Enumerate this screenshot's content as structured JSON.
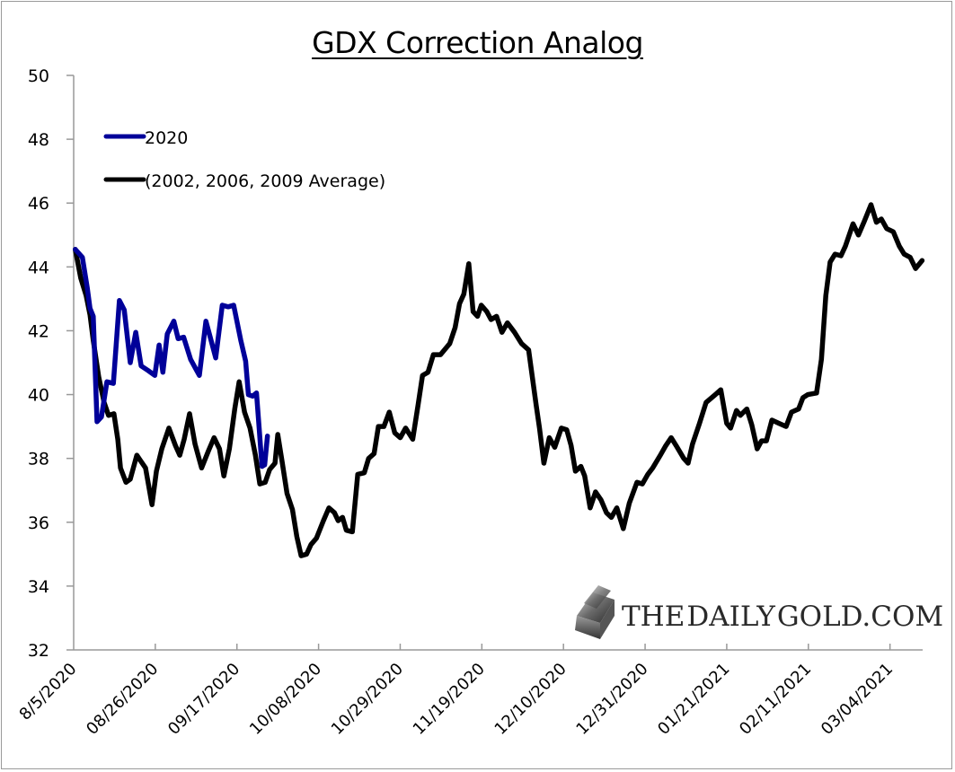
{
  "chart_data": {
    "type": "line",
    "title": "GDX Correction Analog",
    "xlabel": "",
    "ylabel": "",
    "ylim": [
      32,
      50
    ],
    "yticks": [
      32,
      34,
      36,
      38,
      40,
      42,
      44,
      46,
      48,
      50
    ],
    "ytick_labels": [
      "32",
      "34",
      "36",
      "38",
      "40",
      "42",
      "44",
      "46",
      "48",
      "50"
    ],
    "x_unit": "trading day index from 8/5/2020",
    "xlim": [
      0,
      156
    ],
    "xticks": [
      0,
      15,
      30,
      45,
      60,
      75,
      90,
      105,
      120,
      135,
      150
    ],
    "xtick_labels": [
      "8/5/2020",
      "08/26/2020",
      "09/17/2020",
      "10/08/2020",
      "10/29/2020",
      "11/19/2020",
      "12/10/2020",
      "12/31/2020",
      "01/21/2021",
      "02/11/2021",
      "03/04/2021"
    ],
    "grid": false,
    "legend_position": "top-left",
    "series": [
      {
        "name": "2020",
        "color": "#000099",
        "points": [
          [
            0.3,
            44.55
          ],
          [
            1.6,
            44.3
          ],
          [
            2.5,
            43.35
          ],
          [
            3,
            42.7
          ],
          [
            3.6,
            42.45
          ],
          [
            4.3,
            39.15
          ],
          [
            5.1,
            39.3
          ],
          [
            6.1,
            40.4
          ],
          [
            7.3,
            40.35
          ],
          [
            8.4,
            42.95
          ],
          [
            9.3,
            42.65
          ],
          [
            10.4,
            41.0
          ],
          [
            11.4,
            41.95
          ],
          [
            12.4,
            40.9
          ],
          [
            13.7,
            40.75
          ],
          [
            14.9,
            40.6
          ],
          [
            15.7,
            41.55
          ],
          [
            16.4,
            40.7
          ],
          [
            17.2,
            41.9
          ],
          [
            18.4,
            42.3
          ],
          [
            19.2,
            41.75
          ],
          [
            20.2,
            41.8
          ],
          [
            21.5,
            41.1
          ],
          [
            23.1,
            40.6
          ],
          [
            24.3,
            42.3
          ],
          [
            25.1,
            41.8
          ],
          [
            26.1,
            41.15
          ],
          [
            27.3,
            42.8
          ],
          [
            28.4,
            42.75
          ],
          [
            29.4,
            42.8
          ],
          [
            30.7,
            41.7
          ],
          [
            31.6,
            41.05
          ],
          [
            32.1,
            40.0
          ],
          [
            32.9,
            39.95
          ],
          [
            33.6,
            40.05
          ],
          [
            34.1,
            38.9
          ],
          [
            34.6,
            37.75
          ],
          [
            35.1,
            37.8
          ],
          [
            35.6,
            38.7
          ]
        ]
      },
      {
        "name": "(2002, 2006, 2009 Average)",
        "color": "#000000",
        "points": [
          [
            0.3,
            44.55
          ],
          [
            1.3,
            43.65
          ],
          [
            2.3,
            43.1
          ],
          [
            3,
            42.5
          ],
          [
            3.6,
            41.7
          ],
          [
            4.6,
            40.55
          ],
          [
            5.6,
            39.75
          ],
          [
            6.4,
            39.35
          ],
          [
            7.4,
            39.4
          ],
          [
            8.1,
            38.6
          ],
          [
            8.6,
            37.7
          ],
          [
            9.6,
            37.25
          ],
          [
            10.4,
            37.35
          ],
          [
            11.6,
            38.1
          ],
          [
            12.2,
            37.95
          ],
          [
            13.2,
            37.7
          ],
          [
            14.4,
            36.55
          ],
          [
            15.2,
            37.6
          ],
          [
            16.2,
            38.3
          ],
          [
            17.5,
            38.95
          ],
          [
            18.7,
            38.4
          ],
          [
            19.5,
            38.1
          ],
          [
            20.3,
            38.6
          ],
          [
            21.3,
            39.4
          ],
          [
            22.3,
            38.45
          ],
          [
            23.5,
            37.7
          ],
          [
            24.8,
            38.25
          ],
          [
            25.8,
            38.65
          ],
          [
            26.8,
            38.3
          ],
          [
            27.6,
            37.45
          ],
          [
            28.6,
            38.3
          ],
          [
            29.6,
            39.55
          ],
          [
            30.4,
            40.4
          ],
          [
            31.4,
            39.45
          ],
          [
            32.4,
            38.95
          ],
          [
            33.4,
            38.1
          ],
          [
            34.2,
            37.2
          ],
          [
            35.2,
            37.25
          ],
          [
            36,
            37.65
          ],
          [
            37,
            37.85
          ],
          [
            37.5,
            38.75
          ],
          [
            38.3,
            37.9
          ],
          [
            39.2,
            36.9
          ],
          [
            40.2,
            36.4
          ],
          [
            41,
            35.55
          ],
          [
            41.8,
            34.95
          ],
          [
            42.8,
            35.0
          ],
          [
            43.6,
            35.3
          ],
          [
            44.6,
            35.5
          ],
          [
            45.9,
            36.05
          ],
          [
            46.9,
            36.45
          ],
          [
            47.9,
            36.3
          ],
          [
            48.6,
            36.05
          ],
          [
            49.4,
            36.15
          ],
          [
            50.1,
            35.75
          ],
          [
            51.2,
            35.7
          ],
          [
            52.2,
            37.5
          ],
          [
            53.4,
            37.55
          ],
          [
            54.2,
            38.0
          ],
          [
            55.2,
            38.15
          ],
          [
            56,
            39.0
          ],
          [
            57,
            39.0
          ],
          [
            58,
            39.45
          ],
          [
            59,
            38.8
          ],
          [
            60,
            38.65
          ],
          [
            61,
            38.95
          ],
          [
            62.3,
            38.6
          ],
          [
            63.3,
            39.7
          ],
          [
            64.1,
            40.6
          ],
          [
            65.1,
            40.7
          ],
          [
            66.1,
            41.25
          ],
          [
            67.4,
            41.25
          ],
          [
            69.1,
            41.6
          ],
          [
            70.1,
            42.1
          ],
          [
            70.9,
            42.85
          ],
          [
            71.7,
            43.15
          ],
          [
            72.6,
            44.1
          ],
          [
            73.4,
            42.6
          ],
          [
            74.2,
            42.45
          ],
          [
            74.9,
            42.8
          ],
          [
            75.9,
            42.6
          ],
          [
            76.7,
            42.35
          ],
          [
            77.7,
            42.45
          ],
          [
            78.7,
            41.95
          ],
          [
            79.7,
            42.25
          ],
          [
            81,
            41.95
          ],
          [
            82.3,
            41.6
          ],
          [
            83.6,
            41.4
          ],
          [
            85,
            39.65
          ],
          [
            85.6,
            38.95
          ],
          [
            86.4,
            37.85
          ],
          [
            87.4,
            38.65
          ],
          [
            88.4,
            38.35
          ],
          [
            89.6,
            38.95
          ],
          [
            90.6,
            38.9
          ],
          [
            91.4,
            38.4
          ],
          [
            92.2,
            37.6
          ],
          [
            93.2,
            37.75
          ],
          [
            93.9,
            37.45
          ],
          [
            94.9,
            36.45
          ],
          [
            95.9,
            36.95
          ],
          [
            96.9,
            36.7
          ],
          [
            97.9,
            36.3
          ],
          [
            98.8,
            36.15
          ],
          [
            99.8,
            36.45
          ],
          [
            101,
            35.8
          ],
          [
            102.1,
            36.6
          ],
          [
            103.5,
            37.25
          ],
          [
            104.5,
            37.2
          ],
          [
            105.5,
            37.5
          ],
          [
            106.4,
            37.7
          ],
          [
            107.8,
            38.1
          ],
          [
            108.8,
            38.4
          ],
          [
            109.8,
            38.65
          ],
          [
            110.7,
            38.4
          ],
          [
            112.1,
            38.0
          ],
          [
            112.9,
            37.85
          ],
          [
            113.7,
            38.45
          ],
          [
            115,
            39.1
          ],
          [
            116.2,
            39.75
          ],
          [
            117.9,
            40.0
          ],
          [
            118.9,
            40.15
          ],
          [
            120,
            39.1
          ],
          [
            120.7,
            38.95
          ],
          [
            121.8,
            39.5
          ],
          [
            122.5,
            39.35
          ],
          [
            123.7,
            39.55
          ],
          [
            124.6,
            39.05
          ],
          [
            125.6,
            38.3
          ],
          [
            126.4,
            38.55
          ],
          [
            127.3,
            38.55
          ],
          [
            128.3,
            39.2
          ],
          [
            129.6,
            39.1
          ],
          [
            130.9,
            39.0
          ],
          [
            131.9,
            39.45
          ],
          [
            133.2,
            39.55
          ],
          [
            134,
            39.9
          ],
          [
            134.9,
            40.0
          ],
          [
            136.5,
            40.05
          ],
          [
            137.4,
            41.1
          ],
          [
            138.2,
            43.1
          ],
          [
            139,
            44.15
          ],
          [
            139.9,
            44.4
          ],
          [
            141,
            44.35
          ],
          [
            141.8,
            44.65
          ],
          [
            143.2,
            45.35
          ],
          [
            144.2,
            45.0
          ],
          [
            145.2,
            45.4
          ],
          [
            146.5,
            45.95
          ],
          [
            147.5,
            45.4
          ],
          [
            148.4,
            45.5
          ],
          [
            149.4,
            45.2
          ],
          [
            150.6,
            45.1
          ],
          [
            151.7,
            44.65
          ],
          [
            152.6,
            44.4
          ],
          [
            153.7,
            44.3
          ],
          [
            154.7,
            43.95
          ],
          [
            155.9,
            44.2
          ]
        ]
      }
    ]
  },
  "legend": {
    "items": [
      {
        "label": "2020",
        "color": "#000099"
      },
      {
        "label": "(2002, 2006, 2009 Average)",
        "color": "#000000"
      }
    ]
  },
  "watermark": {
    "text_the": "THE",
    "text_daily": "DAILY",
    "text_gold": "GOLD",
    "text_com": ".COM",
    "icon": "gold-bar-icon"
  }
}
